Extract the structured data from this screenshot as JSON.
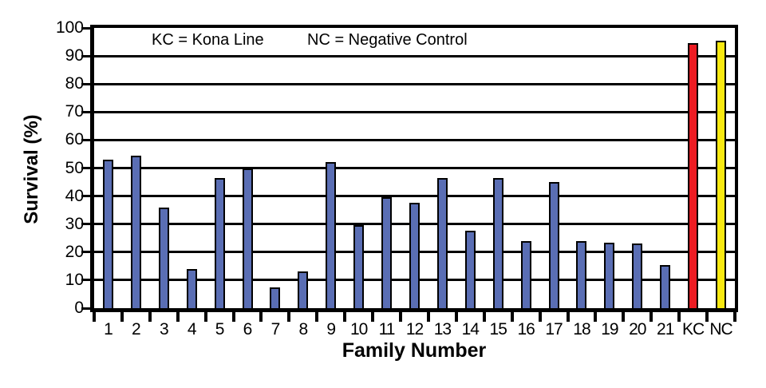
{
  "chart_data": {
    "type": "bar",
    "title": "",
    "xlabel": "Family Number",
    "ylabel": "Survival (%)",
    "ylim": [
      0,
      100
    ],
    "ytick_step": 10,
    "yticks": [
      0,
      10,
      20,
      30,
      40,
      50,
      60,
      70,
      80,
      90,
      100
    ],
    "grid": "horizontal-black-lines",
    "legend_position": "inside-top",
    "annotations": [
      "KC = Kona Line",
      "NC = Negative Control"
    ],
    "categories": [
      "1",
      "2",
      "3",
      "4",
      "5",
      "6",
      "7",
      "8",
      "9",
      "10",
      "11",
      "12",
      "13",
      "14",
      "15",
      "16",
      "17",
      "18",
      "19",
      "20",
      "21",
      "KC",
      "NC"
    ],
    "values": [
      53,
      54.5,
      36,
      14,
      46.5,
      50,
      7.5,
      13,
      52,
      29.5,
      39.5,
      37.5,
      46.5,
      27.5,
      46.5,
      24,
      45,
      24,
      23.5,
      23,
      15.5,
      94.5,
      95.5
    ],
    "bar_colors": [
      "#5A6EB4",
      "#5A6EB4",
      "#5A6EB4",
      "#5A6EB4",
      "#5A6EB4",
      "#5A6EB4",
      "#5A6EB4",
      "#5A6EB4",
      "#5A6EB4",
      "#5A6EB4",
      "#5A6EB4",
      "#5A6EB4",
      "#5A6EB4",
      "#5A6EB4",
      "#5A6EB4",
      "#5A6EB4",
      "#5A6EB4",
      "#5A6EB4",
      "#5A6EB4",
      "#5A6EB4",
      "#5A6EB4",
      "#ED1C23",
      "#F8E911"
    ],
    "colors": {
      "family_bar": "#5A6EB4",
      "kc_bar": "#ED1C23",
      "nc_bar": "#F8E911",
      "axis": "#000000",
      "background": "#FFFFFF"
    }
  }
}
